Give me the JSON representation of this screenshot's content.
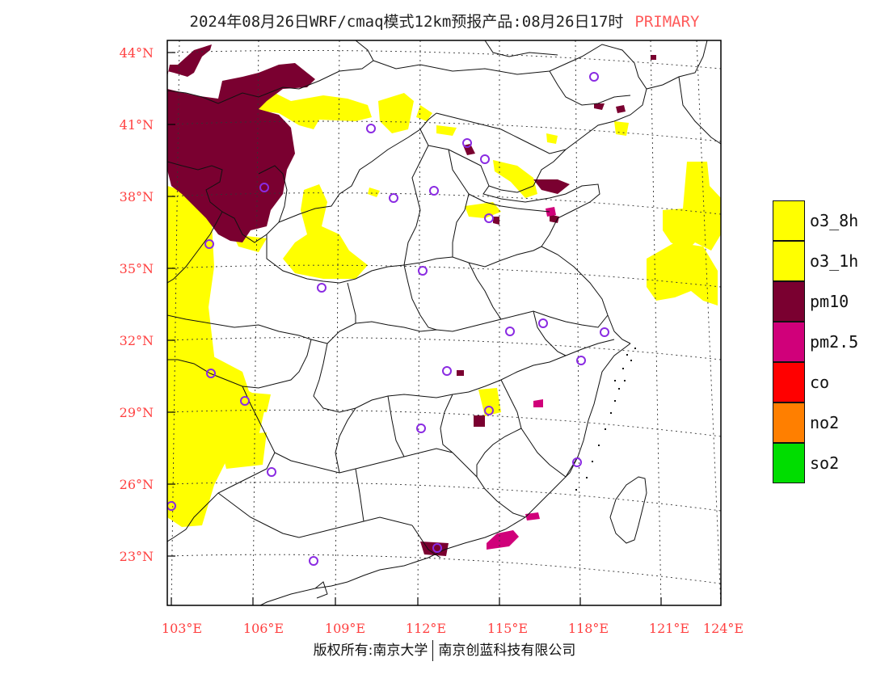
{
  "header": {
    "title": "2024年08月26日WRF/cmaq模式12km预报产品:08月26日17时",
    "tag": "PRIMARY"
  },
  "axes": {
    "lat_labels": [
      "44°N",
      "41°N",
      "38°N",
      "35°N",
      "32°N",
      "29°N",
      "26°N",
      "23°N"
    ],
    "lon_labels": [
      "103°E",
      "106°E",
      "109°E",
      "112°E",
      "115°E",
      "118°E",
      "121°E",
      "124°E"
    ],
    "label_color": "#ff4040"
  },
  "legend": [
    {
      "label": "o3_8h",
      "color": "#ffff00"
    },
    {
      "label": "o3_1h",
      "color": "#ffff00"
    },
    {
      "label": "pm10",
      "color": "#7a0030"
    },
    {
      "label": "pm2.5",
      "color": "#d0007a"
    },
    {
      "label": "co",
      "color": "#ff0000"
    },
    {
      "label": "no2",
      "color": "#ff7f00"
    },
    {
      "label": "so2",
      "color": "#00dd00"
    }
  ],
  "footer": {
    "left": "版权所有:南京大学",
    "right": "南京创蓝科技有限公司"
  }
}
